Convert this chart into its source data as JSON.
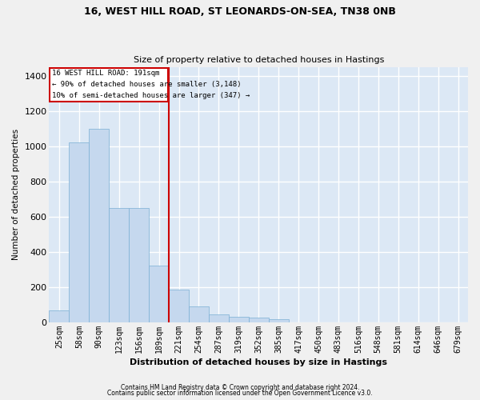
{
  "title_line1": "16, WEST HILL ROAD, ST LEONARDS-ON-SEA, TN38 0NB",
  "title_line2": "Size of property relative to detached houses in Hastings",
  "xlabel": "Distribution of detached houses by size in Hastings",
  "ylabel": "Number of detached properties",
  "bar_color": "#c5d8ee",
  "bar_edge_color": "#7bafd4",
  "background_color": "#dce8f5",
  "grid_color": "#ffffff",
  "fig_background": "#f0f0f0",
  "categories": [
    "25sqm",
    "58sqm",
    "90sqm",
    "123sqm",
    "156sqm",
    "189sqm",
    "221sqm",
    "254sqm",
    "287sqm",
    "319sqm",
    "352sqm",
    "385sqm",
    "417sqm",
    "450sqm",
    "483sqm",
    "516sqm",
    "548sqm",
    "581sqm",
    "614sqm",
    "646sqm",
    "679sqm"
  ],
  "values": [
    65,
    1020,
    1100,
    650,
    650,
    320,
    185,
    90,
    45,
    30,
    25,
    15,
    0,
    0,
    0,
    0,
    0,
    0,
    0,
    0,
    0
  ],
  "ylim": [
    0,
    1450
  ],
  "yticks": [
    0,
    200,
    400,
    600,
    800,
    1000,
    1200,
    1400
  ],
  "vline_pos": 5.5,
  "annotation_line1": "16 WEST HILL ROAD: 191sqm",
  "annotation_line2": "← 90% of detached houses are smaller (3,148)",
  "annotation_line3": "10% of semi-detached houses are larger (347) →",
  "footnote1": "Contains HM Land Registry data © Crown copyright and database right 2024.",
  "footnote2": "Contains public sector information licensed under the Open Government Licence v3.0."
}
